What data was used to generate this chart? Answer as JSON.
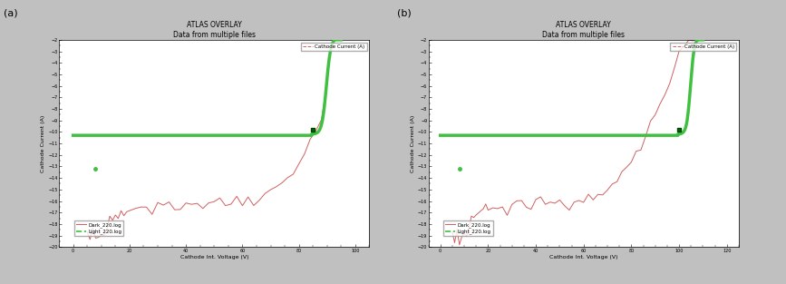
{
  "title": "ATLAS OVERLAY",
  "subtitle": "Data from multiple files",
  "xlabel": "Cathode Int. Voltage (V)",
  "ylabel": "Cathode Current (A)",
  "legend_label1": "Cathode Current (A)",
  "legend_label_dark": "Dark_220.log",
  "legend_label_light": "Light_220.log",
  "bg_color": "#c0c0c0",
  "plot_bg": "#ffffff",
  "plot_a": {
    "xlim": [
      -5,
      105
    ],
    "ylim": [
      -20,
      -2
    ],
    "xticks": [
      0,
      20,
      40,
      60,
      80,
      100
    ],
    "breakdown_v": 85,
    "dark_noisy_x": [
      5,
      6,
      7,
      8,
      9,
      10,
      11,
      12,
      13,
      14,
      15,
      16,
      17,
      18,
      19,
      20,
      22,
      24,
      26,
      28,
      30,
      32,
      34,
      36,
      38,
      40,
      42,
      44,
      46,
      48,
      50,
      52,
      54,
      56,
      58,
      60,
      62,
      64,
      66,
      68,
      70,
      72,
      74,
      76,
      78,
      80,
      82,
      84,
      86,
      88,
      90
    ],
    "dark_noisy_y": [
      -18.8,
      -19.3,
      -18.5,
      -19.6,
      -19.1,
      -18.9,
      -19.4,
      -18.6,
      -17.2,
      -17.8,
      -17.1,
      -17.4,
      -16.9,
      -16.8,
      -16.5,
      -16.7,
      -16.4,
      -16.6,
      -16.3,
      -16.8,
      -16.5,
      -16.3,
      -16.1,
      -16.4,
      -16.6,
      -16.2,
      -16.0,
      -16.3,
      -16.5,
      -16.1,
      -15.9,
      -16.2,
      -16.4,
      -16.0,
      -15.8,
      -16.1,
      -15.7,
      -15.9,
      -15.6,
      -15.4,
      -15.2,
      -14.8,
      -14.4,
      -13.9,
      -13.3,
      -12.6,
      -11.8,
      -10.9,
      -10.0,
      -8.5,
      -6.0
    ]
  },
  "plot_b": {
    "xlim": [
      -5,
      125
    ],
    "ylim": [
      -20,
      -2
    ],
    "xticks": [
      0,
      20,
      40,
      60,
      80,
      100,
      120
    ],
    "breakdown_v": 100,
    "dark_noisy_x": [
      5,
      6,
      7,
      8,
      9,
      10,
      11,
      12,
      13,
      14,
      15,
      16,
      17,
      18,
      19,
      20,
      22,
      24,
      26,
      28,
      30,
      32,
      34,
      36,
      38,
      40,
      42,
      44,
      46,
      48,
      50,
      52,
      54,
      56,
      58,
      60,
      62,
      64,
      66,
      68,
      70,
      72,
      74,
      76,
      78,
      80,
      82,
      84,
      86,
      88,
      90,
      92,
      94,
      96,
      98,
      100,
      102,
      104,
      106
    ],
    "dark_noisy_y": [
      -18.8,
      -19.3,
      -18.5,
      -19.6,
      -19.1,
      -18.9,
      -19.4,
      -18.6,
      -17.2,
      -17.8,
      -17.1,
      -17.4,
      -16.9,
      -16.8,
      -16.5,
      -16.7,
      -16.4,
      -16.6,
      -16.3,
      -16.8,
      -16.5,
      -16.3,
      -16.1,
      -16.4,
      -16.6,
      -16.2,
      -16.0,
      -16.3,
      -16.5,
      -16.1,
      -15.9,
      -16.2,
      -16.4,
      -16.0,
      -15.8,
      -16.1,
      -15.7,
      -15.9,
      -15.6,
      -15.4,
      -15.2,
      -14.8,
      -14.4,
      -13.9,
      -13.3,
      -12.6,
      -11.8,
      -11.0,
      -10.2,
      -9.5,
      -8.8,
      -8.0,
      -7.0,
      -5.8,
      -4.5,
      -3.0,
      -2.5,
      -2.2,
      -2.0
    ]
  },
  "dark_color": "#d06060",
  "light_color": "#40c040",
  "title_fontsize": 5.5,
  "label_fontsize": 4.5,
  "tick_fontsize": 3.5,
  "legend_fontsize": 4.0,
  "ylabel_rotation": 90
}
